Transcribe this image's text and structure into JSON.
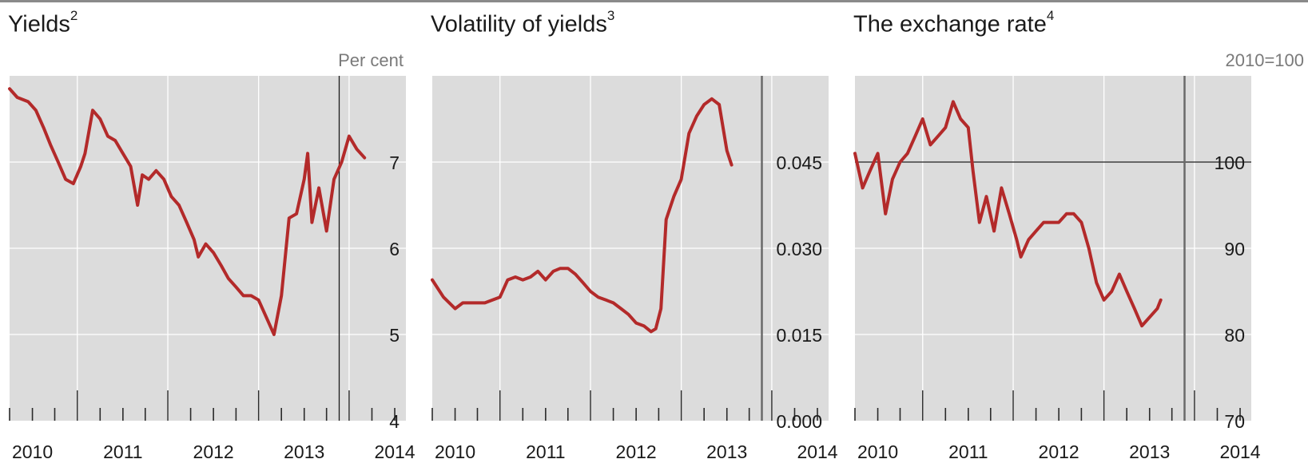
{
  "colors": {
    "series": "#b32a2a",
    "panel_bg": "#dcdcdc",
    "grid": "#ffffff",
    "axis_text": "#1a1a1a",
    "unit_text": "#7a7a7a"
  },
  "chart_data": [
    {
      "type": "line",
      "title": "Yields",
      "title_note": "2",
      "unit": "Per cent",
      "x_ticks": [
        "2010",
        "2011",
        "2012",
        "2013",
        "2014"
      ],
      "xlim": [
        "2009-10-01",
        "2014-02-15"
      ],
      "ylim": [
        4,
        8
      ],
      "y_ticks": [
        "4",
        "5",
        "6",
        "7"
      ],
      "y_tick_values": [
        4,
        5,
        6,
        7
      ],
      "event_line": "2013-05-22",
      "series": [
        {
          "values": [
            [
              "2009-10-01",
              7.85
            ],
            [
              "2009-11-01",
              7.75
            ],
            [
              "2009-12-15",
              7.7
            ],
            [
              "2010-01-15",
              7.6
            ],
            [
              "2010-02-15",
              7.4
            ],
            [
              "2010-03-15",
              7.2
            ],
            [
              "2010-04-15",
              7.0
            ],
            [
              "2010-05-15",
              6.8
            ],
            [
              "2010-06-15",
              6.75
            ],
            [
              "2010-07-15",
              6.95
            ],
            [
              "2010-08-01",
              7.1
            ],
            [
              "2010-09-01",
              7.6
            ],
            [
              "2010-10-01",
              7.5
            ],
            [
              "2010-11-01",
              7.3
            ],
            [
              "2010-12-01",
              7.25
            ],
            [
              "2011-01-01",
              7.1
            ],
            [
              "2011-02-01",
              6.95
            ],
            [
              "2011-03-01",
              6.5
            ],
            [
              "2011-03-20",
              6.85
            ],
            [
              "2011-04-15",
              6.8
            ],
            [
              "2011-05-15",
              6.9
            ],
            [
              "2011-06-15",
              6.8
            ],
            [
              "2011-07-15",
              6.6
            ],
            [
              "2011-08-15",
              6.5
            ],
            [
              "2011-09-15",
              6.3
            ],
            [
              "2011-10-15",
              6.1
            ],
            [
              "2011-11-01",
              5.9
            ],
            [
              "2011-12-01",
              6.05
            ],
            [
              "2012-01-01",
              5.95
            ],
            [
              "2012-02-01",
              5.8
            ],
            [
              "2012-03-01",
              5.65
            ],
            [
              "2012-04-01",
              5.55
            ],
            [
              "2012-05-01",
              5.45
            ],
            [
              "2012-06-01",
              5.45
            ],
            [
              "2012-07-01",
              5.4
            ],
            [
              "2012-08-01",
              5.2
            ],
            [
              "2012-09-01",
              5.0
            ],
            [
              "2012-10-01",
              5.45
            ],
            [
              "2012-11-01",
              6.35
            ],
            [
              "2012-12-01",
              6.4
            ],
            [
              "2013-01-01",
              6.8
            ],
            [
              "2013-01-15",
              7.1
            ],
            [
              "2013-02-01",
              6.3
            ],
            [
              "2013-03-01",
              6.7
            ],
            [
              "2013-04-01",
              6.2
            ],
            [
              "2013-05-01",
              6.8
            ],
            [
              "2013-06-01",
              7.0
            ],
            [
              "2013-07-01",
              7.3
            ],
            [
              "2013-08-01",
              7.15
            ],
            [
              "2013-09-01",
              7.05
            ]
          ]
        }
      ]
    },
    {
      "type": "line",
      "title": "Volatility of yields",
      "title_note": "3",
      "unit": "",
      "x_ticks": [
        "2010",
        "2011",
        "2012",
        "2013",
        "2014"
      ],
      "xlim": [
        "2009-10-01",
        "2014-02-15"
      ],
      "ylim": [
        0,
        0.06
      ],
      "y_ticks": [
        "0.000",
        "0.015",
        "0.030",
        "0.045"
      ],
      "y_tick_values": [
        0,
        0.015,
        0.03,
        0.045
      ],
      "event_line": "2013-05-22",
      "series": [
        {
          "values": [
            [
              "2009-10-01",
              0.0245
            ],
            [
              "2009-11-15",
              0.0215
            ],
            [
              "2010-01-01",
              0.0195
            ],
            [
              "2010-02-01",
              0.0205
            ],
            [
              "2010-03-01",
              0.0205
            ],
            [
              "2010-05-01",
              0.0205
            ],
            [
              "2010-07-01",
              0.0215
            ],
            [
              "2010-08-01",
              0.0245
            ],
            [
              "2010-09-01",
              0.025
            ],
            [
              "2010-10-01",
              0.0245
            ],
            [
              "2010-11-01",
              0.025
            ],
            [
              "2010-12-01",
              0.026
            ],
            [
              "2011-01-01",
              0.0245
            ],
            [
              "2011-02-01",
              0.026
            ],
            [
              "2011-03-01",
              0.0265
            ],
            [
              "2011-04-01",
              0.0265
            ],
            [
              "2011-05-01",
              0.0255
            ],
            [
              "2011-06-01",
              0.024
            ],
            [
              "2011-07-01",
              0.0225
            ],
            [
              "2011-08-01",
              0.0215
            ],
            [
              "2011-09-01",
              0.021
            ],
            [
              "2011-10-01",
              0.0205
            ],
            [
              "2011-11-01",
              0.0195
            ],
            [
              "2011-12-01",
              0.0185
            ],
            [
              "2012-01-01",
              0.017
            ],
            [
              "2012-02-01",
              0.0165
            ],
            [
              "2012-03-01",
              0.0155
            ],
            [
              "2012-03-20",
              0.016
            ],
            [
              "2012-04-10",
              0.0195
            ],
            [
              "2012-05-01",
              0.035
            ],
            [
              "2012-06-01",
              0.039
            ],
            [
              "2012-07-01",
              0.042
            ],
            [
              "2012-08-01",
              0.05
            ],
            [
              "2012-09-01",
              0.053
            ],
            [
              "2012-10-01",
              0.055
            ],
            [
              "2012-11-01",
              0.056
            ],
            [
              "2012-12-01",
              0.055
            ],
            [
              "2013-01-01",
              0.047
            ],
            [
              "2013-01-20",
              0.0445
            ]
          ]
        }
      ]
    },
    {
      "type": "line",
      "title": "The exchange rate",
      "title_note": "4",
      "unit": "2010=100",
      "x_ticks": [
        "2010",
        "2011",
        "2012",
        "2013",
        "2014"
      ],
      "xlim": [
        "2009-10-01",
        "2014-02-15"
      ],
      "ylim": [
        70,
        110
      ],
      "y_ticks": [
        "70",
        "80",
        "90",
        "100"
      ],
      "y_tick_values": [
        70,
        80,
        90,
        100
      ],
      "reference_value": 100,
      "event_line": "2013-05-22",
      "series": [
        {
          "values": [
            [
              "2009-10-01",
              101
            ],
            [
              "2009-11-01",
              97
            ],
            [
              "2009-12-01",
              99
            ],
            [
              "2010-01-01",
              101
            ],
            [
              "2010-02-01",
              94
            ],
            [
              "2010-03-01",
              98
            ],
            [
              "2010-04-01",
              100
            ],
            [
              "2010-05-01",
              101
            ],
            [
              "2010-06-01",
              103
            ],
            [
              "2010-07-01",
              105
            ],
            [
              "2010-08-01",
              102
            ],
            [
              "2010-09-01",
              103
            ],
            [
              "2010-10-01",
              104
            ],
            [
              "2010-11-01",
              107
            ],
            [
              "2010-12-01",
              105
            ],
            [
              "2011-01-01",
              104
            ],
            [
              "2011-01-20",
              99
            ],
            [
              "2011-02-15",
              93
            ],
            [
              "2011-03-15",
              96
            ],
            [
              "2011-04-15",
              92
            ],
            [
              "2011-05-15",
              97
            ],
            [
              "2011-06-15",
              94
            ],
            [
              "2011-07-15",
              91
            ],
            [
              "2011-08-01",
              89
            ],
            [
              "2011-09-01",
              91
            ],
            [
              "2011-10-01",
              92
            ],
            [
              "2011-11-01",
              93
            ],
            [
              "2011-12-01",
              93
            ],
            [
              "2012-01-01",
              93
            ],
            [
              "2012-02-01",
              94
            ],
            [
              "2012-03-01",
              94
            ],
            [
              "2012-04-01",
              93
            ],
            [
              "2012-05-01",
              90
            ],
            [
              "2012-06-01",
              86
            ],
            [
              "2012-07-01",
              84
            ],
            [
              "2012-08-01",
              85
            ],
            [
              "2012-09-01",
              87
            ],
            [
              "2012-10-01",
              85
            ],
            [
              "2012-11-01",
              83
            ],
            [
              "2012-12-01",
              81
            ],
            [
              "2013-01-01",
              82
            ],
            [
              "2013-02-01",
              83
            ],
            [
              "2013-02-15",
              84
            ]
          ]
        }
      ]
    }
  ]
}
